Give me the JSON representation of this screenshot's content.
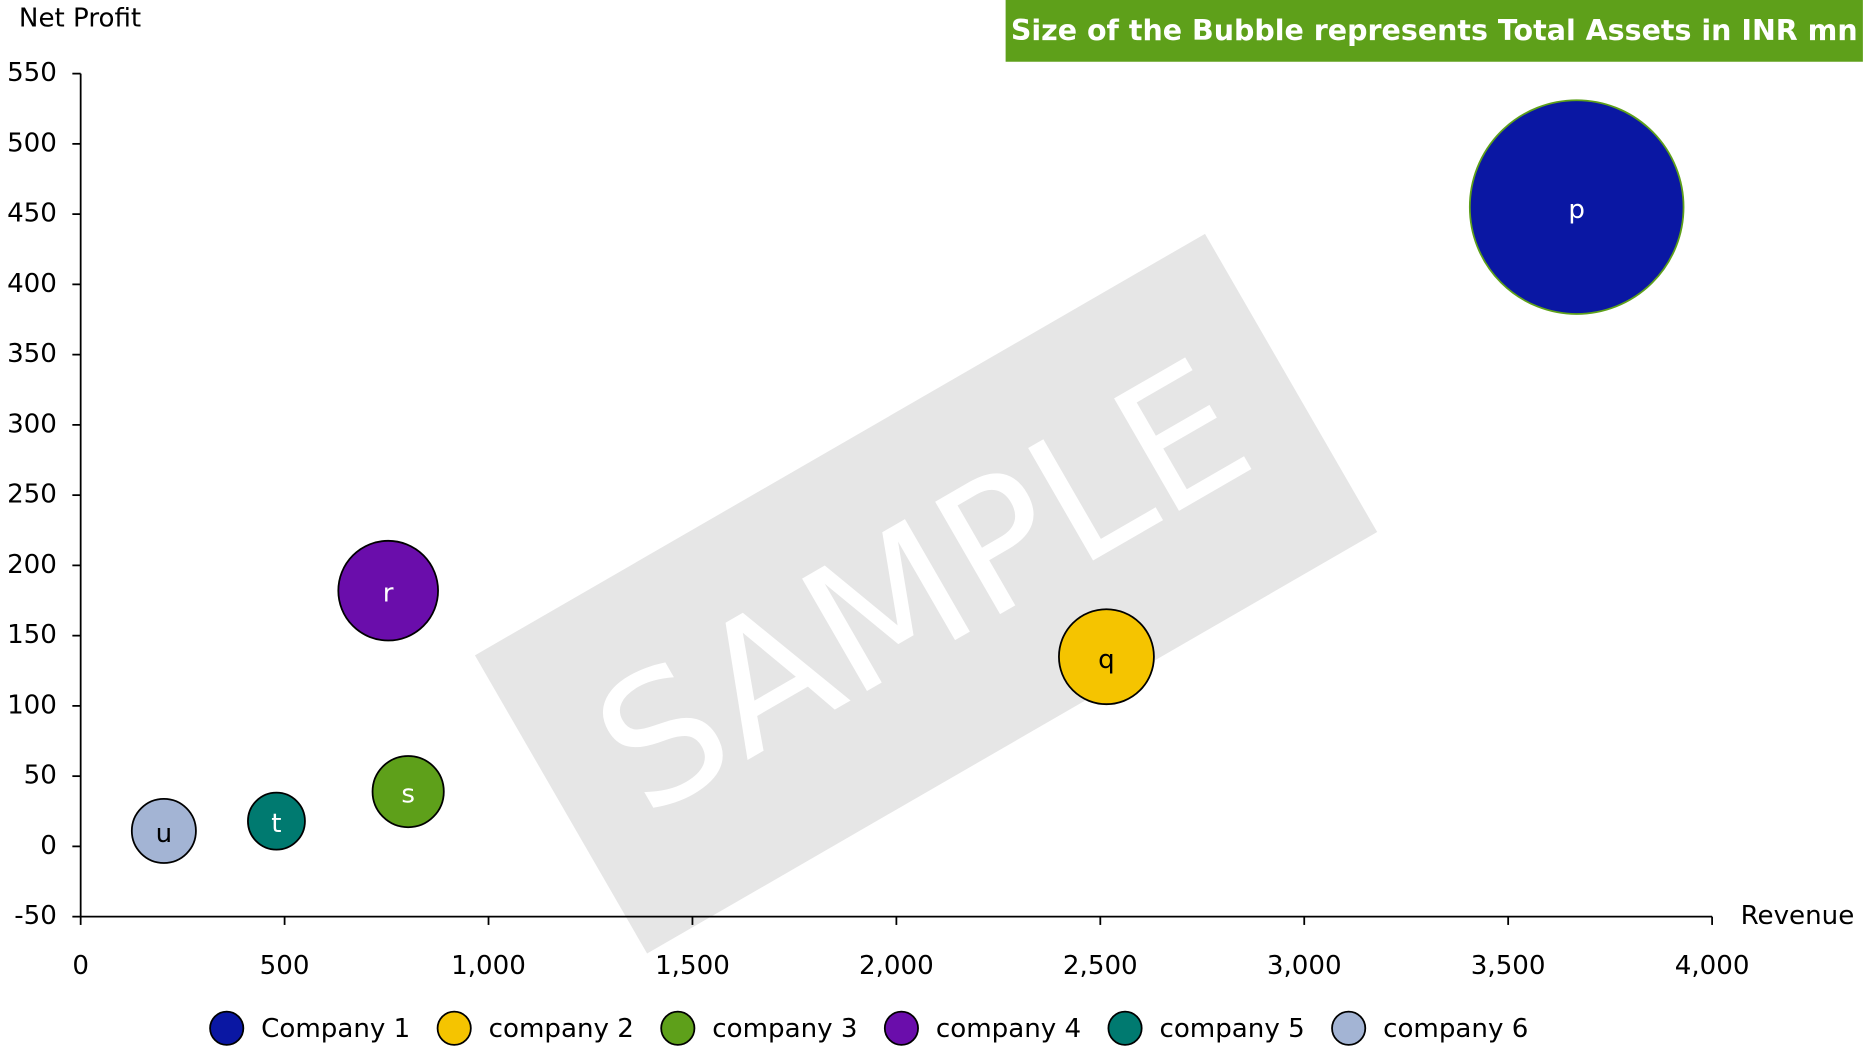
{
  "chart_data": {
    "type": "bubble",
    "annotation": "Size of the Bubble represents Total Assets in INR mn",
    "watermark": "SAMPLE",
    "y_label": "Net Profit",
    "x_label": "Revenue",
    "xlim": [
      0,
      4000
    ],
    "xticks": [
      0,
      500,
      {
        "value": 1000,
        "label": "1,000"
      },
      {
        "value": 1500,
        "label": "1,500"
      },
      {
        "value": 2000,
        "label": "2,000"
      },
      {
        "value": 2500,
        "label": "2,500"
      },
      {
        "value": 3000,
        "label": "3,000"
      },
      {
        "value": 3500,
        "label": "3,500"
      },
      {
        "value": 4000,
        "label": "4,000"
      }
    ],
    "ylim": [
      -50,
      550
    ],
    "yticks": [
      -50,
      0,
      50,
      100,
      150,
      200,
      250,
      300,
      350,
      400,
      450,
      500,
      550
    ],
    "series": [
      {
        "name": "Company 1",
        "color": "#0a17a3",
        "edge": "#5ea01a",
        "x": 3668,
        "y": 455,
        "size": 8000,
        "label": "p"
      },
      {
        "name": "company 2",
        "color": "#f5c400",
        "edge": "#000000",
        "x": 2515,
        "y": 135,
        "size": 1580,
        "label": "q"
      },
      {
        "name": "company 3",
        "color": "#5ea01a",
        "edge": "#000000",
        "x": 803,
        "y": 39,
        "size": 889,
        "label": "s"
      },
      {
        "name": "company 4",
        "color": "#6a0dab",
        "edge": "#000000",
        "x": 754,
        "y": 182,
        "size": 1742,
        "label": "r"
      },
      {
        "name": "company 5",
        "color": "#007a70",
        "edge": "#000000",
        "x": 480,
        "y": 18,
        "size": 569,
        "label": "t"
      },
      {
        "name": "company 6",
        "color": "#a3b4d4",
        "edge": "#000000",
        "x": 204,
        "y": 11,
        "size": 720,
        "label": "u"
      }
    ]
  }
}
